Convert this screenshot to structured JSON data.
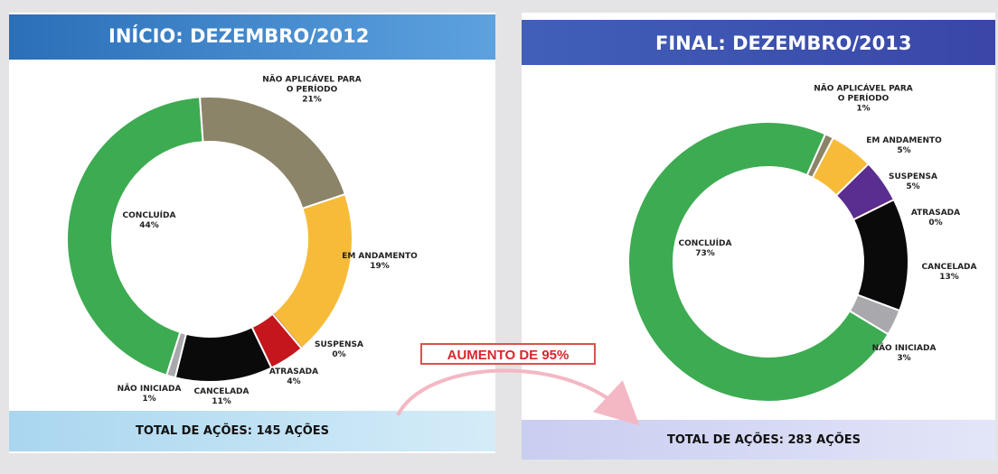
{
  "annotation": "AUMENTO DE 95%",
  "chart_data": [
    {
      "type": "donut",
      "title": "INÍCIO: DEZEMBRO/2012",
      "total_label": "TOTAL DE AÇÕES: 145 AÇÕES",
      "categories": [
        "NÃO APLICÁVEL PARA O PERÍODO",
        "EM ANDAMENTO",
        "SUSPENSA",
        "ATRASADA",
        "CANCELADA",
        "NÃO INICIADA",
        "CONCLUÍDA"
      ],
      "values": [
        21,
        19,
        0,
        4,
        11,
        1,
        44
      ],
      "value_labels": [
        "21%",
        "19%",
        "0%",
        "4%",
        "11%",
        "1%",
        "44%"
      ],
      "colors": [
        "#8c8468",
        "#f7bb3a",
        "#7a3aa0",
        "#c4161c",
        "#0a0a0a",
        "#a9a9ad",
        "#3dab52"
      ]
    },
    {
      "type": "donut",
      "title": "FINAL: DEZEMBRO/2013",
      "total_label": "TOTAL DE AÇÕES: 283 AÇÕES",
      "categories": [
        "NÃO APLICÁVEL PARA O PERÍODO",
        "EM ANDAMENTO",
        "SUSPENSA",
        "ATRASADA",
        "CANCELADA",
        "NÃO INICIADA",
        "CONCLUÍDA"
      ],
      "values": [
        1,
        5,
        5,
        0,
        13,
        3,
        73
      ],
      "value_labels": [
        "1%",
        "5%",
        "5%",
        "0%",
        "13%",
        "3%",
        "73%"
      ],
      "colors": [
        "#8c8468",
        "#f7bb3a",
        "#5a2d90",
        "#c4161c",
        "#0a0a0a",
        "#a9a9ad",
        "#3dab52"
      ]
    }
  ]
}
